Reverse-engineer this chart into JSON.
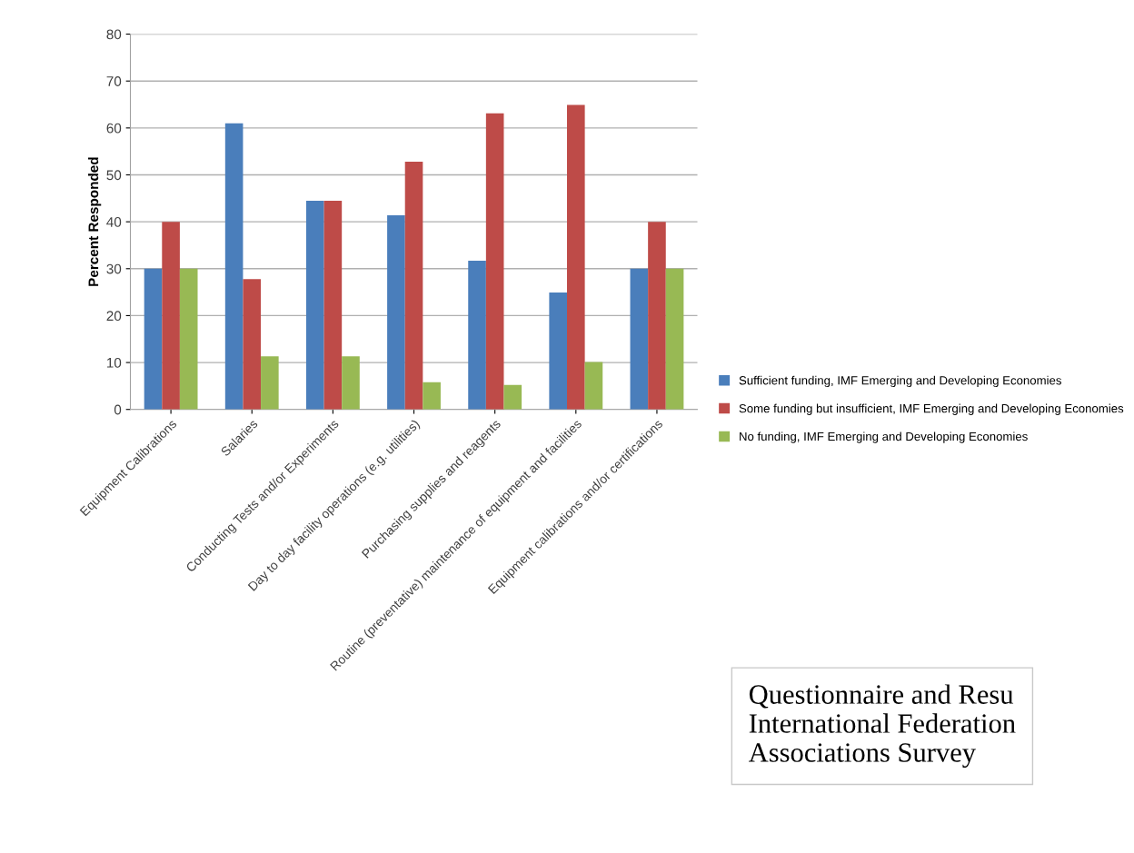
{
  "chart_data": {
    "type": "bar",
    "ylabel": "Percent Responded",
    "categories": [
      "Equipment Calibrations",
      "Salaries",
      "Conducting Tests and/or Experiments",
      "Day to day facility operations (e.g. utilities)",
      "Purchasing supplies and reagents",
      "Routine (preventative) maintenance of equipment and facilities",
      "Equipment calibrations and/or certifications"
    ],
    "series": [
      {
        "name": "Sufficient funding, IMF Emerging and Developing Economies",
        "color": "#4a7ebb",
        "values": [
          30,
          61,
          44.5,
          41.4,
          31.7,
          24.9,
          30
        ]
      },
      {
        "name": "Some funding but insufficient, IMF Emerging and Developing Economies",
        "color": "#be4b48",
        "values": [
          40,
          27.8,
          44.5,
          52.8,
          63.1,
          64.9,
          40
        ]
      },
      {
        "name": "No funding, IMF Emerging and Developing Economies",
        "color": "#98b954",
        "values": [
          30,
          11.3,
          11.3,
          5.8,
          5.2,
          10.1,
          30
        ]
      }
    ],
    "ylim": [
      0,
      80
    ],
    "yticks": [
      0,
      10,
      20,
      30,
      40,
      50,
      60,
      70,
      80
    ],
    "grid": "y",
    "legend": "right",
    "annotations": [
      "Questionnaire and Resu\nInternational Federation\nAssociations Survey"
    ]
  }
}
